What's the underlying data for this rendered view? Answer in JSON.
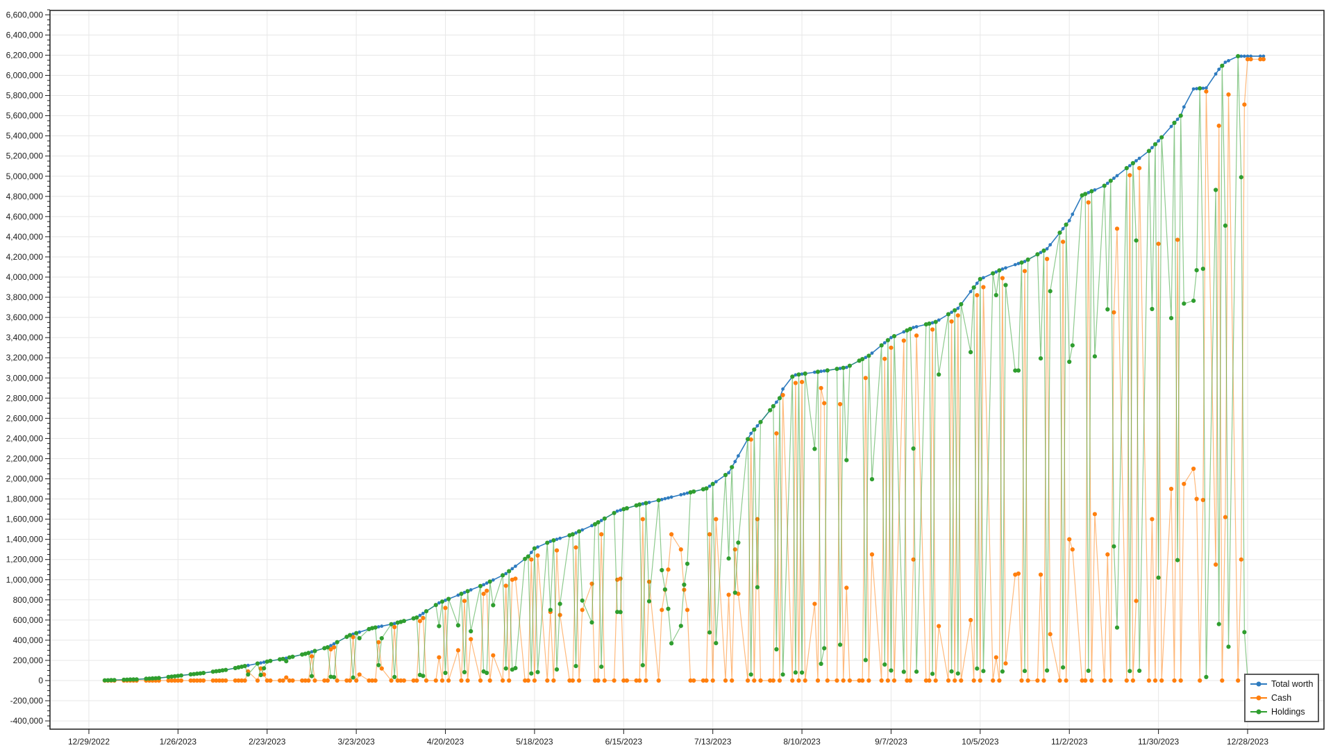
{
  "chart_data": {
    "type": "line",
    "title": "",
    "xlabel": "",
    "ylabel": "",
    "grid": true,
    "legend_position": "bottom-right",
    "day_zero_date": "12/29/2022",
    "x_axis": {
      "tick_labels": [
        "12/29/2022",
        "1/26/2023",
        "2/23/2023",
        "3/23/2023",
        "4/20/2023",
        "5/18/2023",
        "6/15/2023",
        "7/13/2023",
        "8/10/2023",
        "9/7/2023",
        "10/5/2023",
        "11/2/2023",
        "11/30/2023",
        "12/28/2023"
      ],
      "tick_day_indices": [
        0,
        28,
        56,
        84,
        112,
        140,
        168,
        196,
        224,
        252,
        280,
        308,
        336,
        364
      ]
    },
    "y_axis": {
      "label_min": -400000,
      "label_max": 6600000,
      "step": 200000,
      "minor_step": 50000,
      "render_min": -483000,
      "render_max": 6643000
    },
    "unit": 1000,
    "day_indices": [
      5,
      6,
      7,
      8,
      11,
      12,
      13,
      14,
      15,
      18,
      19,
      20,
      21,
      22,
      25,
      26,
      27,
      28,
      29,
      32,
      33,
      34,
      35,
      36,
      39,
      40,
      41,
      42,
      43,
      46,
      47,
      48,
      49,
      50,
      53,
      54,
      55,
      56,
      57,
      60,
      61,
      62,
      63,
      64,
      67,
      68,
      69,
      70,
      71,
      74,
      75,
      76,
      77,
      78,
      81,
      82,
      83,
      84,
      85,
      88,
      89,
      90,
      91,
      92,
      95,
      96,
      97,
      98,
      99,
      102,
      103,
      104,
      105,
      106,
      109,
      110,
      111,
      112,
      113,
      116,
      117,
      118,
      119,
      120,
      123,
      124,
      125,
      126,
      127,
      130,
      131,
      132,
      133,
      134,
      137,
      138,
      139,
      140,
      141,
      144,
      145,
      146,
      147,
      148,
      151,
      152,
      153,
      154,
      155,
      158,
      159,
      160,
      161,
      162,
      165,
      166,
      167,
      168,
      169,
      172,
      173,
      174,
      175,
      176,
      179,
      180,
      181,
      182,
      183,
      186,
      187,
      188,
      189,
      190,
      193,
      194,
      195,
      196,
      197,
      200,
      201,
      202,
      203,
      204,
      207,
      208,
      209,
      210,
      211,
      214,
      215,
      216,
      217,
      218,
      221,
      222,
      223,
      224,
      225,
      228,
      229,
      230,
      231,
      232,
      235,
      236,
      237,
      238,
      239,
      242,
      243,
      244,
      245,
      246,
      249,
      250,
      251,
      252,
      253,
      256,
      257,
      258,
      259,
      260,
      263,
      264,
      265,
      266,
      267,
      270,
      271,
      272,
      273,
      274,
      277,
      278,
      279,
      280,
      281,
      284,
      285,
      286,
      287,
      288,
      291,
      292,
      293,
      294,
      295,
      298,
      299,
      300,
      301,
      302,
      305,
      306,
      307,
      308,
      309,
      312,
      313,
      314,
      315,
      316,
      319,
      320,
      321,
      322,
      323,
      326,
      327,
      328,
      329,
      330,
      333,
      334,
      335,
      336,
      337,
      340,
      341,
      342,
      343,
      344,
      347,
      348,
      349,
      350,
      351,
      354,
      355,
      356,
      357,
      358,
      361,
      362,
      363,
      364,
      365,
      368,
      369
    ],
    "series": [
      {
        "name": "Total worth",
        "color": "#2e7bbf",
        "values_k": [
          2,
          3,
          4,
          5,
          8,
          9,
          10,
          11,
          12,
          18,
          19,
          21,
          23,
          25,
          36,
          39,
          43,
          46,
          50,
          61,
          64,
          68,
          71,
          75,
          88,
          92,
          96,
          101,
          105,
          124,
          131,
          137,
          144,
          150,
          169,
          175,
          182,
          188,
          195,
          210,
          215,
          222,
          229,
          236,
          258,
          265,
          274,
          284,
          293,
          321,
          330,
          347,
          364,
          381,
          433,
          450,
          460,
          470,
          480,
          510,
          520,
          526,
          533,
          539,
          559,
          565,
          574,
          582,
          591,
          616,
          625,
          646,
          666,
          687,
          749,
          770,
          783,
          796,
          809,
          847,
          860,
          873,
          886,
          899,
          937,
          950,
          966,
          981,
          997,
          1044,
          1060,
          1084,
          1109,
          1133,
          1206,
          1230,
          1270,
          1310,
          1324,
          1366,
          1380,
          1390,
          1400,
          1410,
          1440,
          1450,
          1464,
          1479,
          1493,
          1536,
          1550,
          1569,
          1587,
          1606,
          1661,
          1680,
          1689,
          1699,
          1708,
          1736,
          1745,
          1752,
          1759,
          1766,
          1788,
          1795,
          1803,
          1811,
          1819,
          1842,
          1850,
          1858,
          1866,
          1874,
          1897,
          1905,
          1927,
          1949,
          1971,
          2038,
          2060,
          2116,
          2171,
          2227,
          2394,
          2450,
          2488,
          2525,
          2563,
          2680,
          2720,
          2760,
          2800,
          2890,
          3013,
          3030,
          3034,
          3039,
          3043,
          3057,
          3061,
          3066,
          3070,
          3075,
          3090,
          3095,
          3100,
          3105,
          3121,
          3171,
          3187,
          3203,
          3220,
          3246,
          3323,
          3349,
          3374,
          3400,
          3414,
          3457,
          3471,
          3486,
          3500,
          3508,
          3531,
          3539,
          3547,
          3555,
          3574,
          3632,
          3651,
          3671,
          3690,
          3731,
          3856,
          3897,
          3939,
          3980,
          3994,
          4037,
          4051,
          4066,
          4080,
          4091,
          4123,
          4134,
          4144,
          4155,
          4173,
          4226,
          4244,
          4262,
          4280,
          4320,
          4440,
          4480,
          4520,
          4560,
          4623,
          4810,
          4824,
          4837,
          4851,
          4864,
          4905,
          4930,
          4955,
          4980,
          5005,
          5080,
          5104,
          5129,
          5153,
          5177,
          5250,
          5283,
          5317,
          5350,
          5386,
          5493,
          5529,
          5564,
          5600,
          5687,
          5865,
          5868,
          5871,
          5872,
          5875,
          6014,
          6060,
          6095,
          6130,
          6145,
          6190,
          6190,
          6190,
          6190,
          6190,
          6190,
          6190
        ]
      },
      {
        "name": "Cash",
        "color": "#ff7f0e",
        "values_k": [
          0,
          0,
          0,
          0,
          0,
          0,
          0,
          0,
          0,
          0,
          0,
          0,
          0,
          0,
          0,
          0,
          0,
          0,
          0,
          0,
          0,
          0,
          0,
          0,
          0,
          0,
          0,
          0,
          0,
          0,
          0,
          0,
          0,
          90,
          0,
          120,
          60,
          0,
          0,
          0,
          0,
          30,
          0,
          0,
          0,
          0,
          0,
          240,
          0,
          0,
          0,
          310,
          330,
          0,
          0,
          0,
          430,
          0,
          60,
          0,
          0,
          0,
          380,
          120,
          0,
          530,
          0,
          0,
          0,
          0,
          0,
          590,
          620,
          0,
          0,
          230,
          0,
          720,
          0,
          300,
          0,
          790,
          0,
          410,
          0,
          860,
          890,
          0,
          250,
          0,
          940,
          0,
          1000,
          1010,
          0,
          0,
          1200,
          0,
          1240,
          0,
          680,
          0,
          1290,
          650,
          0,
          0,
          1320,
          0,
          700,
          960,
          0,
          0,
          1450,
          0,
          0,
          1000,
          1010,
          0,
          0,
          0,
          0,
          1600,
          0,
          980,
          0,
          700,
          900,
          1100,
          1450,
          1300,
          900,
          700,
          0,
          0,
          0,
          0,
          1450,
          0,
          1600,
          0,
          850,
          0,
          1300,
          860,
          0,
          2390,
          0,
          1600,
          0,
          0,
          0,
          2450,
          0,
          2830,
          0,
          2950,
          0,
          2960,
          0,
          760,
          0,
          2900,
          2750,
          0,
          0,
          2740,
          0,
          920,
          0,
          0,
          0,
          3000,
          0,
          1250,
          0,
          3190,
          0,
          3300,
          0,
          3370,
          0,
          0,
          1200,
          3420,
          0,
          0,
          3480,
          0,
          540,
          0,
          3560,
          0,
          3620,
          0,
          600,
          0,
          3820,
          0,
          3900,
          0,
          230,
          0,
          3990,
          170,
          1050,
          1060,
          0,
          4060,
          0,
          0,
          1050,
          0,
          4180,
          460,
          0,
          4350,
          0,
          1400,
          1300,
          0,
          0,
          4740,
          0,
          1650,
          0,
          1250,
          0,
          3650,
          4480,
          0,
          5010,
          0,
          790,
          5080,
          0,
          1600,
          0,
          4330,
          0,
          1900,
          0,
          4370,
          0,
          1950,
          2100,
          1800,
          0,
          1790,
          5840,
          1150,
          5500,
          0,
          1620,
          5810,
          0,
          1200,
          5710,
          6160,
          6160,
          6160,
          6160
        ]
      },
      {
        "name": "Holdings",
        "color": "#2f9e2f",
        "values_k": [
          2,
          3,
          4,
          5,
          8,
          9,
          10,
          11,
          12,
          18,
          19,
          21,
          23,
          25,
          36,
          39,
          43,
          46,
          50,
          61,
          64,
          68,
          71,
          75,
          88,
          92,
          96,
          101,
          105,
          124,
          131,
          137,
          144,
          60,
          169,
          55,
          122,
          188,
          195,
          210,
          215,
          192,
          229,
          236,
          258,
          265,
          274,
          44,
          293,
          321,
          330,
          37,
          34,
          381,
          433,
          450,
          30,
          470,
          420,
          510,
          520,
          526,
          153,
          419,
          559,
          35,
          574,
          582,
          591,
          616,
          625,
          56,
          46,
          687,
          749,
          540,
          783,
          76,
          809,
          547,
          860,
          83,
          886,
          489,
          937,
          90,
          76,
          981,
          747,
          1044,
          120,
          1084,
          109,
          123,
          1206,
          1230,
          70,
          1310,
          84,
          1366,
          700,
          1390,
          110,
          760,
          1440,
          1450,
          144,
          1479,
          793,
          576,
          1550,
          1569,
          137,
          1606,
          1661,
          680,
          679,
          1699,
          1708,
          1736,
          1745,
          152,
          1759,
          786,
          1788,
          1095,
          903,
          711,
          369,
          542,
          950,
          1158,
          1866,
          1874,
          1897,
          1905,
          477,
          1949,
          371,
          2038,
          1210,
          2116,
          871,
          1367,
          2394,
          60,
          2488,
          925,
          2563,
          2680,
          2720,
          310,
          2800,
          60,
          3013,
          80,
          3034,
          79,
          3043,
          2297,
          3061,
          166,
          320,
          3075,
          3090,
          355,
          3100,
          2185,
          3121,
          3171,
          3187,
          203,
          3220,
          1996,
          3323,
          159,
          3374,
          100,
          3414,
          87,
          3471,
          3486,
          2300,
          88,
          3531,
          3539,
          67,
          3555,
          3034,
          3632,
          91,
          3671,
          70,
          3731,
          3256,
          3897,
          119,
          3980,
          94,
          4037,
          3821,
          4066,
          90,
          3921,
          3073,
          3074,
          4144,
          95,
          4173,
          4226,
          3194,
          4262,
          100,
          3860,
          4440,
          130,
          4520,
          3160,
          3323,
          4810,
          4824,
          97,
          4851,
          3214,
          4905,
          3680,
          4955,
          1330,
          525,
          5080,
          94,
          5129,
          4363,
          97,
          5250,
          3683,
          5317,
          1020,
          5386,
          3593,
          5529,
          1194,
          5600,
          3737,
          3765,
          4068,
          5871,
          4082,
          35,
          4864,
          560,
          6095,
          4510,
          335,
          6190,
          4990,
          480,
          30,
          30,
          30,
          30
        ]
      }
    ],
    "legend_entries": [
      "Total worth",
      "Cash",
      "Holdings"
    ]
  },
  "style": {
    "background": "#ffffff",
    "grid_color": "#e7e7e7",
    "frame_color": "#1a1a1a",
    "tick_color": "#1a1a1a",
    "label_color": "#1a1a1a",
    "legend_border_color": "#595959"
  }
}
